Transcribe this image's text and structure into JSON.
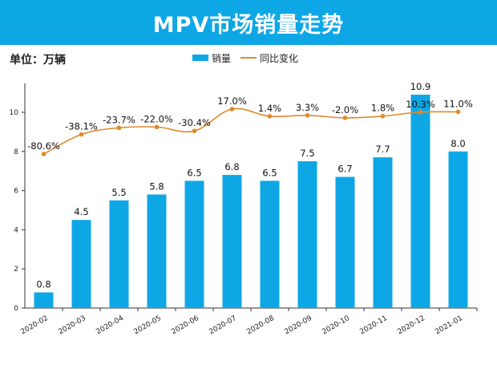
{
  "header": {
    "title": "MPV市场销量走势"
  },
  "unit_label": "单位：万辆",
  "legend": {
    "bar_label": "销量",
    "line_label": "同比变化"
  },
  "colors": {
    "banner": "#0ea7e6",
    "bar": "#0ea7e6",
    "line": "#e08a2a",
    "marker": "#e08a2a"
  },
  "chart_data": {
    "type": "bar",
    "title": "MPV市场销量走势",
    "categories": [
      "2020-02",
      "2020-03",
      "2020-04",
      "2020-05",
      "2020-06",
      "2020-07",
      "2020-08",
      "2020-09",
      "2020-10",
      "2020-11",
      "2020-12",
      "2021-01"
    ],
    "series": [
      {
        "name": "销量",
        "type": "bar",
        "values": [
          0.8,
          4.5,
          5.5,
          5.8,
          6.5,
          6.8,
          6.5,
          7.5,
          6.7,
          7.7,
          10.9,
          8.0
        ],
        "labels": [
          "0.8",
          "4.5",
          "5.5",
          "5.8",
          "6.5",
          "6.8",
          "6.5",
          "7.5",
          "6.7",
          "7.7",
          "10.9",
          "8.0"
        ]
      },
      {
        "name": "同比变化",
        "type": "line",
        "smooth": true,
        "values_pct": [
          -80.6,
          -38.1,
          -23.7,
          -22.0,
          -30.4,
          17.0,
          1.4,
          3.3,
          -2.0,
          1.8,
          10.3,
          11.0
        ],
        "labels": [
          "-80.6%",
          "-38.1%",
          "-23.7%",
          "-22.0%",
          "-30.4%",
          "17.0%",
          "1.4%",
          "3.3%",
          "-2.0%",
          "1.8%",
          "10.3%",
          "11.0%"
        ]
      }
    ],
    "ylim": [
      0,
      11.3
    ],
    "yticks": [
      0,
      2,
      4,
      6,
      8,
      10
    ],
    "grid": false,
    "legend_position": "top-center"
  }
}
